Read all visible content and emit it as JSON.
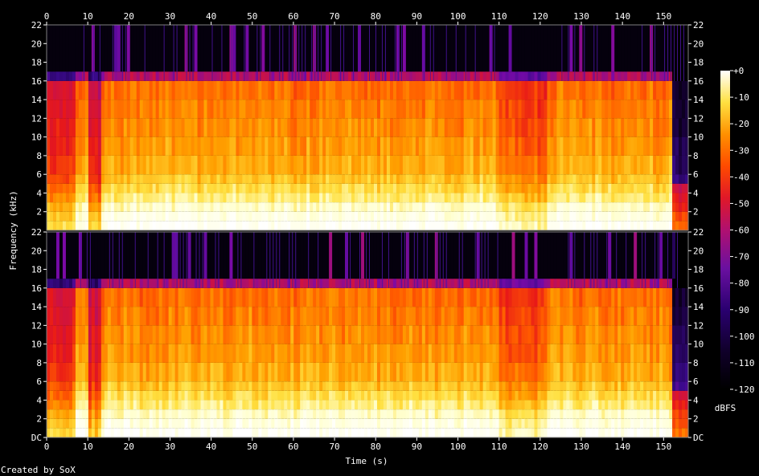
{
  "chart_data": {
    "type": "heatmap",
    "title": "",
    "xlabel": "Time (s)",
    "ylabel": "Frequency (kHz)",
    "xlim": [
      0,
      156
    ],
    "ylim_khz": [
      0,
      22
    ],
    "x_ticks": [
      0,
      10,
      20,
      30,
      40,
      50,
      60,
      70,
      80,
      90,
      100,
      110,
      120,
      130,
      140,
      150
    ],
    "y_ticks_top": [
      "22",
      "20",
      "18",
      "16",
      "14",
      "12",
      "10",
      "8",
      "6",
      "4",
      "2"
    ],
    "y_ticks_bottom": [
      "22",
      "20",
      "18",
      "16",
      "14",
      "12",
      "10",
      "8",
      "6",
      "4",
      "2",
      "DC"
    ],
    "channels": 2,
    "colorbar": {
      "label": "dBFS",
      "ticks": [
        "+0",
        "-10",
        "-20",
        "-30",
        "-40",
        "-50",
        "-60",
        "-70",
        "-80",
        "-90",
        "-100",
        "-110",
        "-120"
      ],
      "range": [
        -120,
        0
      ]
    },
    "cutoff_khz": 16,
    "quiet_segments_s": [
      [
        0,
        7
      ],
      [
        110,
        122
      ],
      [
        152,
        156
      ]
    ],
    "colormap": [
      "#000000",
      "#1a0040",
      "#3a0a8c",
      "#7a0aa8",
      "#c8124a",
      "#e81818",
      "#ff5a00",
      "#ffa000",
      "#ffe040",
      "#ffffd0",
      "#ffffff"
    ]
  },
  "footer": {
    "credit": "Created by SoX"
  }
}
